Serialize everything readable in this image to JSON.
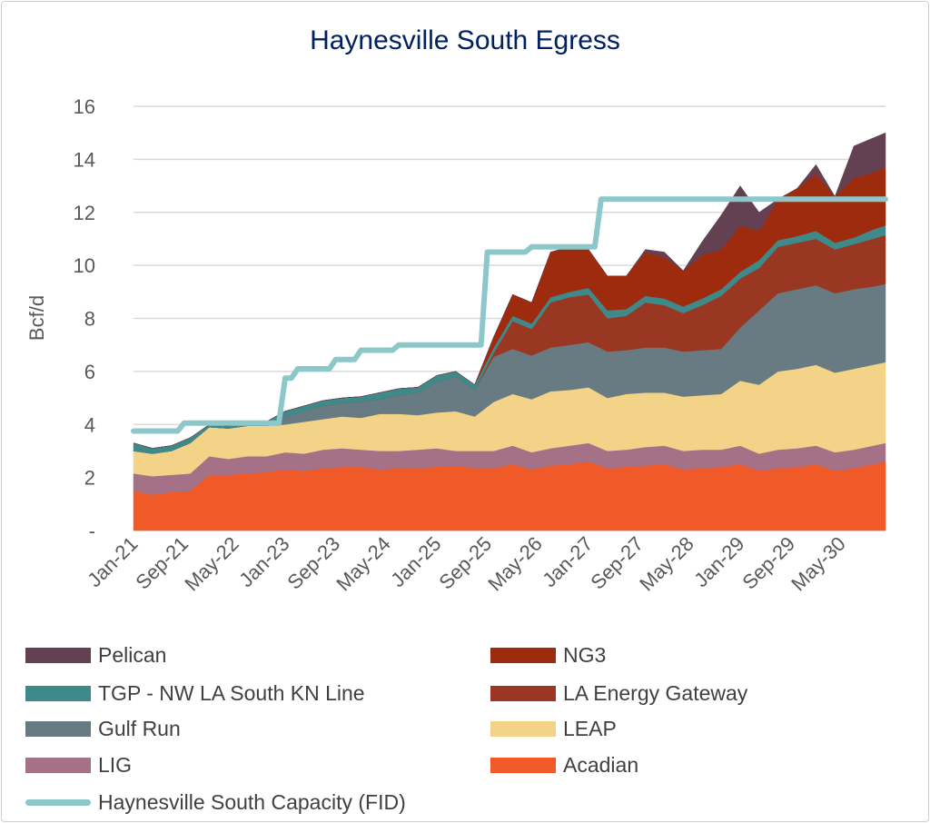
{
  "chart_data": {
    "type": "area",
    "stacked": true,
    "title": "Haynesville South Egress",
    "ylabel": "Bcf/d",
    "xlabel": "",
    "ylim": [
      0,
      16
    ],
    "yticks": [
      0,
      2,
      4,
      6,
      8,
      10,
      12,
      14,
      16
    ],
    "ytick_labels": [
      "-",
      "2",
      "4",
      "6",
      "8",
      "10",
      "12",
      "14",
      "16"
    ],
    "xtick_labels": [
      "Jan-21",
      "Sep-21",
      "May-22",
      "Jan-23",
      "Sep-23",
      "May-24",
      "Jan-25",
      "Sep-25",
      "May-26",
      "Jan-27",
      "Sep-27",
      "May-28",
      "Jan-29",
      "Sep-29",
      "May-30"
    ],
    "grid": true,
    "legend_position": "bottom",
    "x": [
      "Jan-21",
      "Apr-21",
      "Jul-21",
      "Oct-21",
      "Jan-22",
      "Apr-22",
      "Jul-22",
      "Oct-22",
      "Jan-23",
      "Apr-23",
      "Jul-23",
      "Oct-23",
      "Jan-24",
      "Apr-24",
      "Jul-24",
      "Oct-24",
      "Jan-25",
      "Apr-25",
      "Jul-25",
      "Oct-25",
      "Jan-26",
      "Apr-26",
      "Jul-26",
      "Oct-26",
      "Jan-27",
      "Apr-27",
      "Jul-27",
      "Oct-27",
      "Jan-28",
      "Apr-28",
      "Jul-28",
      "Oct-28",
      "Jan-29",
      "Apr-29",
      "Jul-29",
      "Oct-29",
      "Jan-30",
      "Apr-30",
      "Jul-30",
      "Oct-30",
      "Dec-30"
    ],
    "series": [
      {
        "name": "Acadian",
        "color": "#F05A28",
        "values": [
          1.5,
          1.35,
          1.45,
          1.5,
          2.1,
          2.1,
          2.15,
          2.2,
          2.3,
          2.25,
          2.35,
          2.4,
          2.4,
          2.3,
          2.35,
          2.35,
          2.4,
          2.45,
          2.35,
          2.35,
          2.5,
          2.3,
          2.45,
          2.5,
          2.6,
          2.35,
          2.4,
          2.45,
          2.5,
          2.3,
          2.35,
          2.4,
          2.5,
          2.25,
          2.35,
          2.4,
          2.5,
          2.25,
          2.35,
          2.5,
          2.6
        ]
      },
      {
        "name": "LIG",
        "color": "#A57187",
        "values": [
          0.65,
          0.7,
          0.65,
          0.65,
          0.7,
          0.6,
          0.65,
          0.6,
          0.65,
          0.65,
          0.7,
          0.7,
          0.65,
          0.7,
          0.65,
          0.7,
          0.7,
          0.55,
          0.65,
          0.65,
          0.7,
          0.65,
          0.65,
          0.7,
          0.7,
          0.65,
          0.65,
          0.7,
          0.7,
          0.7,
          0.7,
          0.65,
          0.7,
          0.65,
          0.7,
          0.7,
          0.7,
          0.7,
          0.7,
          0.7,
          0.7
        ]
      },
      {
        "name": "LEAP",
        "color": "#F2D388",
        "values": [
          0.85,
          0.85,
          0.9,
          1.15,
          1.1,
          1.15,
          1.15,
          1.15,
          1.05,
          1.2,
          1.15,
          1.2,
          1.2,
          1.4,
          1.4,
          1.3,
          1.35,
          1.5,
          1.3,
          1.85,
          1.95,
          2.0,
          2.15,
          2.1,
          2.1,
          2.0,
          2.1,
          2.05,
          2.0,
          2.05,
          2.05,
          2.1,
          2.45,
          2.6,
          2.95,
          3.0,
          3.05,
          3.0,
          3.05,
          3.05,
          3.05
        ]
      },
      {
        "name": "Gulf Run",
        "color": "#687B82",
        "values": [
          0,
          0,
          0,
          0,
          0,
          0,
          0,
          0,
          0.3,
          0.4,
          0.5,
          0.5,
          0.6,
          0.55,
          0.7,
          0.85,
          1.15,
          1.3,
          1.0,
          1.7,
          1.7,
          1.65,
          1.65,
          1.7,
          1.7,
          1.75,
          1.65,
          1.7,
          1.7,
          1.7,
          1.7,
          1.7,
          2.0,
          2.8,
          2.95,
          3.0,
          3.0,
          3.0,
          3.0,
          2.95,
          2.95
        ]
      },
      {
        "name": "LA Energy Gateway",
        "color": "#993722",
        "values": [
          0,
          0,
          0,
          0,
          0,
          0,
          0,
          0,
          0,
          0,
          0,
          0,
          0,
          0,
          0,
          0,
          0,
          0,
          0,
          0.15,
          1.05,
          1.0,
          1.7,
          1.8,
          1.8,
          1.25,
          1.3,
          1.7,
          1.6,
          1.45,
          1.7,
          2.0,
          1.85,
          1.6,
          1.75,
          1.75,
          1.75,
          1.65,
          1.7,
          1.8,
          1.85
        ]
      },
      {
        "name": "TGP - NW LA South KN Line",
        "color": "#3E8A8A",
        "values": [
          0.3,
          0.2,
          0.2,
          0.2,
          0.1,
          0.1,
          0.1,
          0.15,
          0.2,
          0.2,
          0.2,
          0.2,
          0.2,
          0.25,
          0.25,
          0.2,
          0.25,
          0.2,
          0.2,
          0.2,
          0.2,
          0.2,
          0.2,
          0.2,
          0.25,
          0.3,
          0.25,
          0.25,
          0.25,
          0.25,
          0.25,
          0.25,
          0.25,
          0.3,
          0.25,
          0.25,
          0.3,
          0.25,
          0.25,
          0.35,
          0.35
        ]
      },
      {
        "name": "NG3",
        "color": "#9E2B0E",
        "values": [
          0,
          0,
          0,
          0,
          0,
          0,
          0,
          0,
          0,
          0,
          0,
          0,
          0,
          0,
          0,
          0,
          0,
          0,
          0,
          0.4,
          0.8,
          0.8,
          1.7,
          1.7,
          1.45,
          1.3,
          1.25,
          1.65,
          1.55,
          1.35,
          1.65,
          1.5,
          1.75,
          1.1,
          1.55,
          1.8,
          2.15,
          1.75,
          2.25,
          2.15,
          2.2
        ]
      },
      {
        "name": "Pelican",
        "color": "#634052",
        "values": [
          0,
          0,
          0,
          0,
          0,
          0,
          0,
          0,
          0,
          0,
          0,
          0,
          0,
          0,
          0,
          0,
          0,
          0,
          0,
          0,
          0,
          0,
          0,
          0,
          0,
          0,
          0,
          0.1,
          0.2,
          0,
          0.5,
          1.3,
          1.5,
          0.7,
          0,
          0,
          0.35,
          0,
          1.2,
          1.3,
          1.3
        ]
      }
    ],
    "capacity_line": {
      "name": "Haynesville South Capacity (FID)",
      "color": "#8CC8C9",
      "steps": [
        [
          "Jan-21",
          3.75
        ],
        [
          "Sep-21",
          4.05
        ],
        [
          "Jan-23",
          5.75
        ],
        [
          "Mar-23",
          6.1
        ],
        [
          "Sep-23",
          6.45
        ],
        [
          "Jan-24",
          6.8
        ],
        [
          "Jul-24",
          7.0
        ],
        [
          "Sep-25",
          10.5
        ],
        [
          "Apr-26",
          10.7
        ],
        [
          "Mar-27",
          12.5
        ]
      ],
      "end": "Dec-30"
    }
  },
  "legend": [
    {
      "label": "Pelican",
      "color": "#634052",
      "type": "area"
    },
    {
      "label": "NG3",
      "color": "#9E2B0E",
      "type": "area"
    },
    {
      "label": "TGP - NW LA South KN Line",
      "color": "#3E8A8A",
      "type": "area"
    },
    {
      "label": "LA Energy Gateway",
      "color": "#993722",
      "type": "area"
    },
    {
      "label": "Gulf Run",
      "color": "#687B82",
      "type": "area"
    },
    {
      "label": "LEAP",
      "color": "#F2D388",
      "type": "area"
    },
    {
      "label": "LIG",
      "color": "#A57187",
      "type": "area"
    },
    {
      "label": "Acadian",
      "color": "#F05A28",
      "type": "area"
    },
    {
      "label": "Haynesville South Capacity (FID)",
      "color": "#8CC8C9",
      "type": "line"
    }
  ],
  "colors": {
    "title": "#002060",
    "grid": "#D9D9D9",
    "text": "#595959"
  }
}
